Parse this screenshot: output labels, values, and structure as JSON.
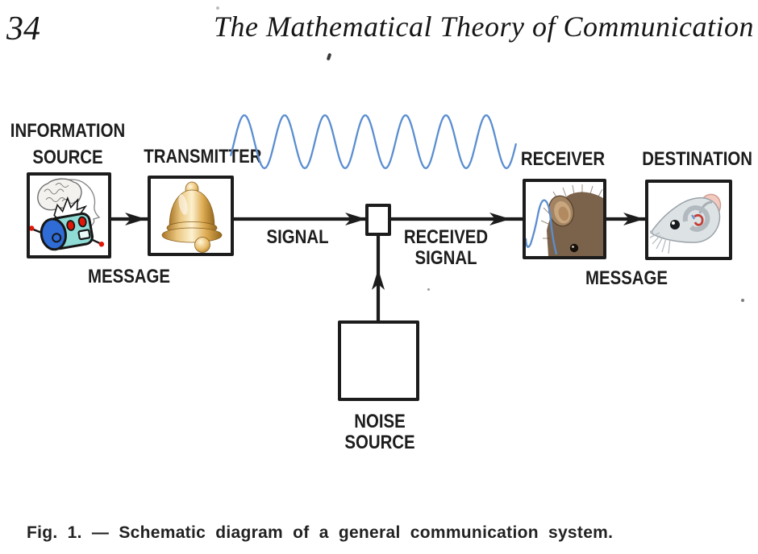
{
  "page": {
    "number": "34",
    "running_title": "The Mathematical Theory of Communication",
    "caption": "Fig. 1. — Schematic diagram of a general communication system."
  },
  "diagram": {
    "information_source": {
      "line1": "INFORMATION",
      "line2": "SOURCE"
    },
    "transmitter": "TRANSMITTER",
    "message_left": "MESSAGE",
    "signal": "SIGNAL",
    "received_signal": {
      "line1": "RECEIVED",
      "line2": "SIGNAL"
    },
    "receiver": "RECEIVER",
    "destination": "DESTINATION",
    "message_right": "MESSAGE",
    "noise_source": {
      "line1": "NOISE",
      "line2": "SOURCE"
    },
    "icons": {
      "information_source": "brain-head-robot-icon",
      "transmitter": "golden-bell-icon",
      "channel": "empty-channel-box",
      "receiver": "mouse-ear-photo-icon",
      "destination": "rat-head-illustration-icon",
      "carrier": "sine-wave"
    },
    "colors": {
      "ink": "#1c1c1c",
      "wave_blue": "#5b8ed0",
      "bell_gold": "#d9a84e",
      "robot_cyan": "#8fdcd6",
      "robot_blue": "#2f6cd6",
      "robot_red": "#e21507",
      "mouse_brown": "#7b624a",
      "rat_gray": "#dde2e5",
      "rat_ear_pink": "#f4cabf"
    }
  }
}
